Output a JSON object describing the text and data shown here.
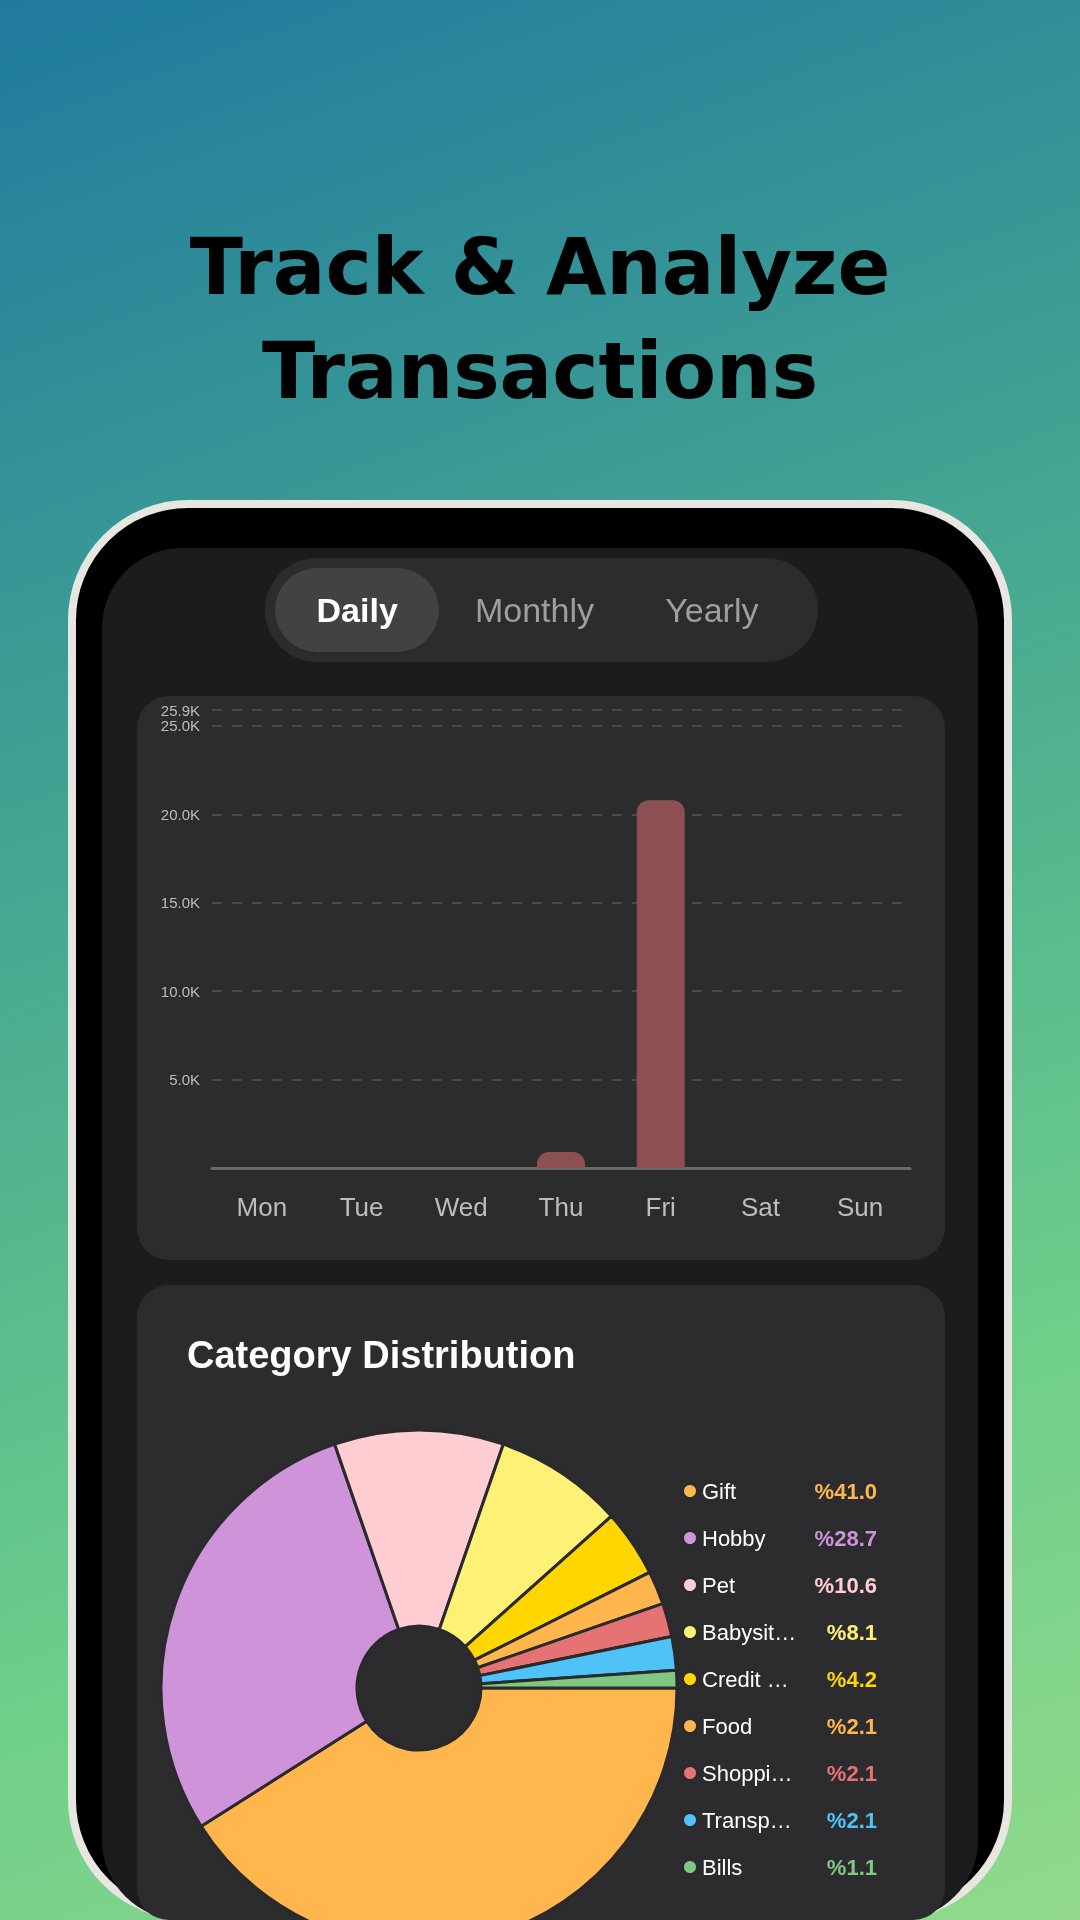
{
  "chart_data": [
    {
      "type": "bar",
      "title": "Track & Analyze Transactions",
      "annotations": [
        "Daily",
        "Monthly",
        "Yearly"
      ],
      "categories": [
        "Mon",
        "Tue",
        "Wed",
        "Thu",
        "Fri",
        "Sat",
        "Sun"
      ],
      "values": [
        0,
        0,
        0,
        900,
        20800,
        0,
        0
      ],
      "color": "#8c5052",
      "ylim": [
        0,
        25900
      ],
      "yticks": [
        {
          "value": 5000,
          "label": "5.0K"
        },
        {
          "value": 10000,
          "label": "10.0K"
        },
        {
          "value": 15000,
          "label": "15.0K"
        },
        {
          "value": 20000,
          "label": "20.0K"
        },
        {
          "value": 25000,
          "label": "25.0K"
        },
        {
          "value": 25900,
          "label": "25.9K"
        }
      ],
      "grid": "y"
    },
    {
      "type": "donut",
      "title": "Category Distribution",
      "categories": [
        "Gift",
        "Hobby",
        "Pet",
        "Babysit…",
        "Credit …",
        "Food",
        "Shoppi…",
        "Transp…",
        "Bills"
      ],
      "values": [
        41.0,
        28.7,
        10.6,
        8.1,
        4.2,
        2.1,
        2.1,
        2.1,
        1.1
      ],
      "colors": [
        "#ffb74d",
        "#ce93d8",
        "#ffcdd2",
        "#fff176",
        "#ffd600",
        "#ffb74d",
        "#e57373",
        "#4fc3f7",
        "#81c784"
      ],
      "value_labels": [
        "%41.0",
        "%28.7",
        "%10.6",
        "%8.1",
        "%4.2",
        "%2.1",
        "%2.1",
        "%2.1",
        "%1.1"
      ],
      "legend": "right"
    }
  ]
}
